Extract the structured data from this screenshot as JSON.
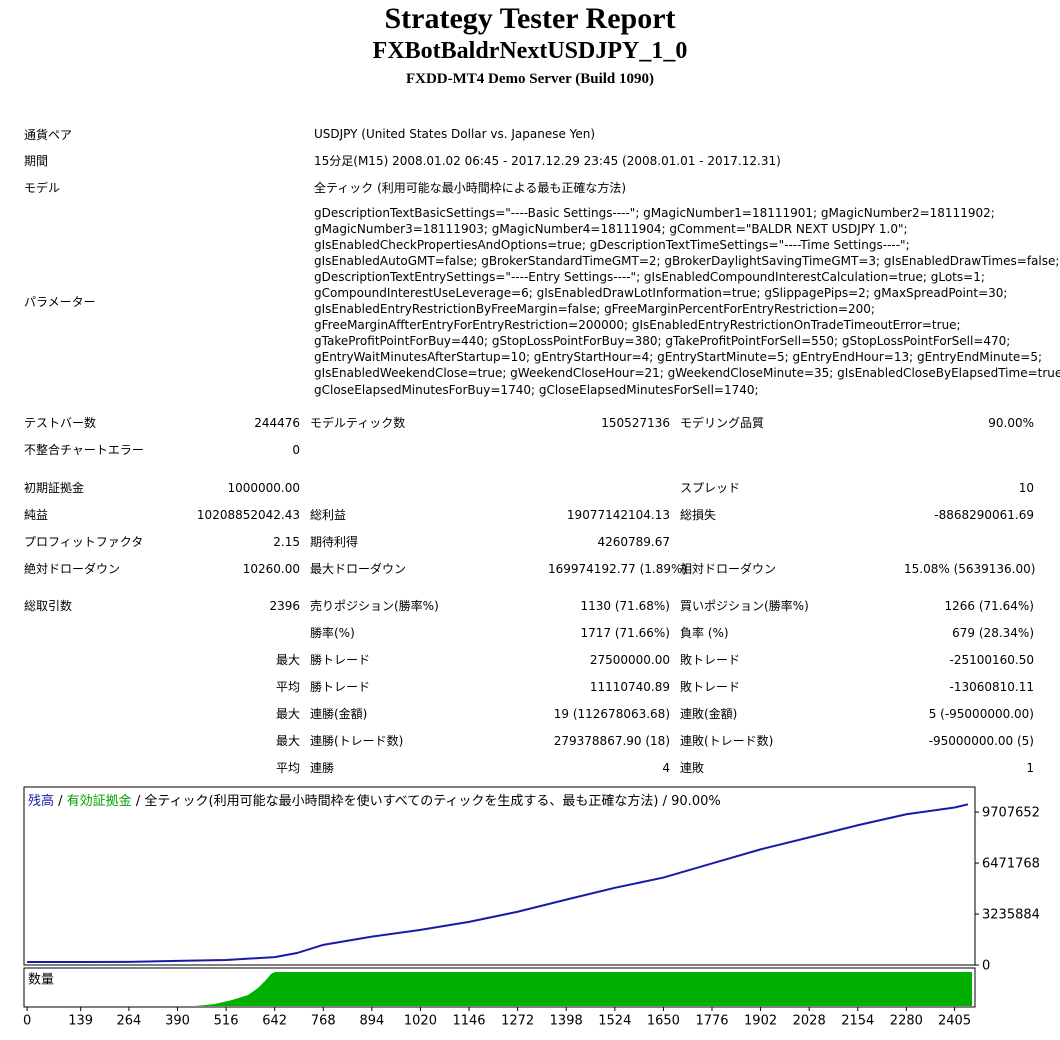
{
  "report": {
    "title": "Strategy Tester Report",
    "expert": "FXBotBaldrNextUSDJPY_1_0",
    "server": "FXDD-MT4 Demo Server (Build 1090)",
    "info": [
      [
        "通貨ペア",
        "USDJPY (United States Dollar vs. Japanese Yen)"
      ],
      [
        "期間",
        "15分足(M15) 2008.01.02 06:45 - 2017.12.29 23:45 (2008.01.01 - 2017.12.31)"
      ],
      [
        "モデル",
        "全ティック (利用可能な最小時間枠による最も正確な方法)"
      ]
    ],
    "parameters_label": "パラメーター",
    "parameters": [
      "gDescriptionTextBasicSettings=\"----Basic Settings----\"; gMagicNumber1=18111901; gMagicNumber2=18111902;",
      "gMagicNumber3=18111903; gMagicNumber4=18111904; gComment=\"BALDR NEXT USDJPY 1.0\";",
      "gIsEnabledCheckPropertiesAndOptions=true; gDescriptionTextTimeSettings=\"----Time Settings----\";",
      "gIsEnabledAutoGMT=false; gBrokerStandardTimeGMT=2; gBrokerDaylightSavingTimeGMT=3; gIsEnabledDrawTimes=false;",
      "gDescriptionTextEntrySettings=\"----Entry Settings----\"; gIsEnabledCompoundInterestCalculation=true; gLots=1;",
      "gCompoundInterestUseLeverage=6; gIsEnabledDrawLotInformation=true; gSlippagePips=2; gMaxSpreadPoint=30;",
      "gIsEnabledEntryRestrictionByFreeMargin=false; gFreeMarginPercentForEntryRestriction=200;",
      "gFreeMarginAffterEntryForEntryRestriction=200000; gIsEnabledEntryRestrictionOnTradeTimeoutError=true;",
      "gTakeProfitPointForBuy=440; gStopLossPointForBuy=380; gTakeProfitPointForSell=550; gStopLossPointForSell=470;",
      "gEntryWaitMinutesAfterStartup=10; gEntryStartHour=4; gEntryStartMinute=5; gEntryEndHour=13; gEntryEndMinute=5;",
      "gIsEnabledWeekendClose=true; gWeekendCloseHour=21; gWeekendCloseMinute=35; gIsEnabledCloseByElapsedTime=true;",
      "gCloseElapsedMinutesForBuy=1740; gCloseElapsedMinutesForSell=1740;"
    ],
    "stats": [
      [
        [
          "テストバー数",
          "244476",
          "モデルティック数",
          "150527136",
          "モデリング品質",
          "90.00%"
        ],
        [
          "不整合チャートエラー",
          "0",
          null,
          null,
          null,
          null
        ]
      ],
      [
        [
          "初期証拠金",
          "1000000.00",
          null,
          null,
          "スプレッド",
          "10"
        ],
        [
          "純益",
          "10208852042.43",
          "総利益",
          "19077142104.13",
          "総損失",
          "-8868290061.69"
        ],
        [
          "プロフィットファクタ",
          "2.15",
          "期待利得",
          "4260789.67",
          null,
          null
        ],
        [
          "絶対ドローダウン",
          "10260.00",
          "最大ドローダウン",
          "169974192.77 (1.89%)",
          "相対ドローダウン",
          "15.08% (5639136.00)"
        ]
      ],
      [
        [
          "総取引数",
          "2396",
          "売りポジション(勝率%)",
          "1130 (71.68%)",
          "買いポジション(勝率%)",
          "1266 (71.64%)"
        ],
        [
          null,
          null,
          "勝率(%)",
          "1717 (71.66%)",
          "負率 (%)",
          "679 (28.34%)"
        ],
        [
          null,
          "最大",
          "勝トレード",
          "27500000.00",
          "敗トレード",
          "-25100160.50"
        ],
        [
          null,
          "平均",
          "勝トレード",
          "11110740.89",
          "敗トレード",
          "-13060810.11"
        ],
        [
          null,
          "最大",
          "連勝(金額)",
          "19 (112678063.68)",
          "連敗(金額)",
          "5 (-95000000.00)"
        ],
        [
          null,
          "最大",
          "連勝(トレード数)",
          "279378867.90 (18)",
          "連敗(トレード数)",
          "-95000000.00 (5)"
        ],
        [
          null,
          "平均",
          "連勝",
          "4",
          "連敗",
          "1"
        ]
      ]
    ]
  },
  "chart_data": {
    "type": "line",
    "series": [
      {
        "name": "残高",
        "color": "#1a1aa8",
        "values": [
          190000,
          190000,
          200000,
          260000,
          320000,
          500000,
          760000,
          1280000,
          1800000,
          2230000,
          2740000,
          3380000,
          4150000,
          4900000,
          5550000,
          6450000,
          7340000,
          8100000,
          8870000,
          9570000,
          10000000,
          10200000
        ]
      }
    ],
    "x": [
      0,
      139,
      264,
      390,
      516,
      642,
      700,
      768,
      894,
      1020,
      1146,
      1272,
      1398,
      1524,
      1650,
      1776,
      1902,
      2028,
      2154,
      2280,
      2405,
      2440
    ],
    "separator": " / ",
    "equity_label": {
      "name": "有効証拠金",
      "color": "#00a000"
    },
    "model_note": " / 全ティック(利用可能な最小時間枠を使いすべてのティックを生成する、最も正確な方法) / 90.00%",
    "volume_label": "数量",
    "volume_color": "#00b000",
    "xlim": [
      -8,
      2458
    ],
    "ylim": [
      0,
      11300000
    ],
    "xticks": [
      0,
      139,
      264,
      390,
      516,
      642,
      768,
      894,
      1020,
      1146,
      1272,
      1398,
      1524,
      1650,
      1776,
      1902,
      2028,
      2154,
      2280,
      2405
    ],
    "yticks": [
      0,
      3235884,
      6471768,
      9707652
    ],
    "grid": false
  }
}
